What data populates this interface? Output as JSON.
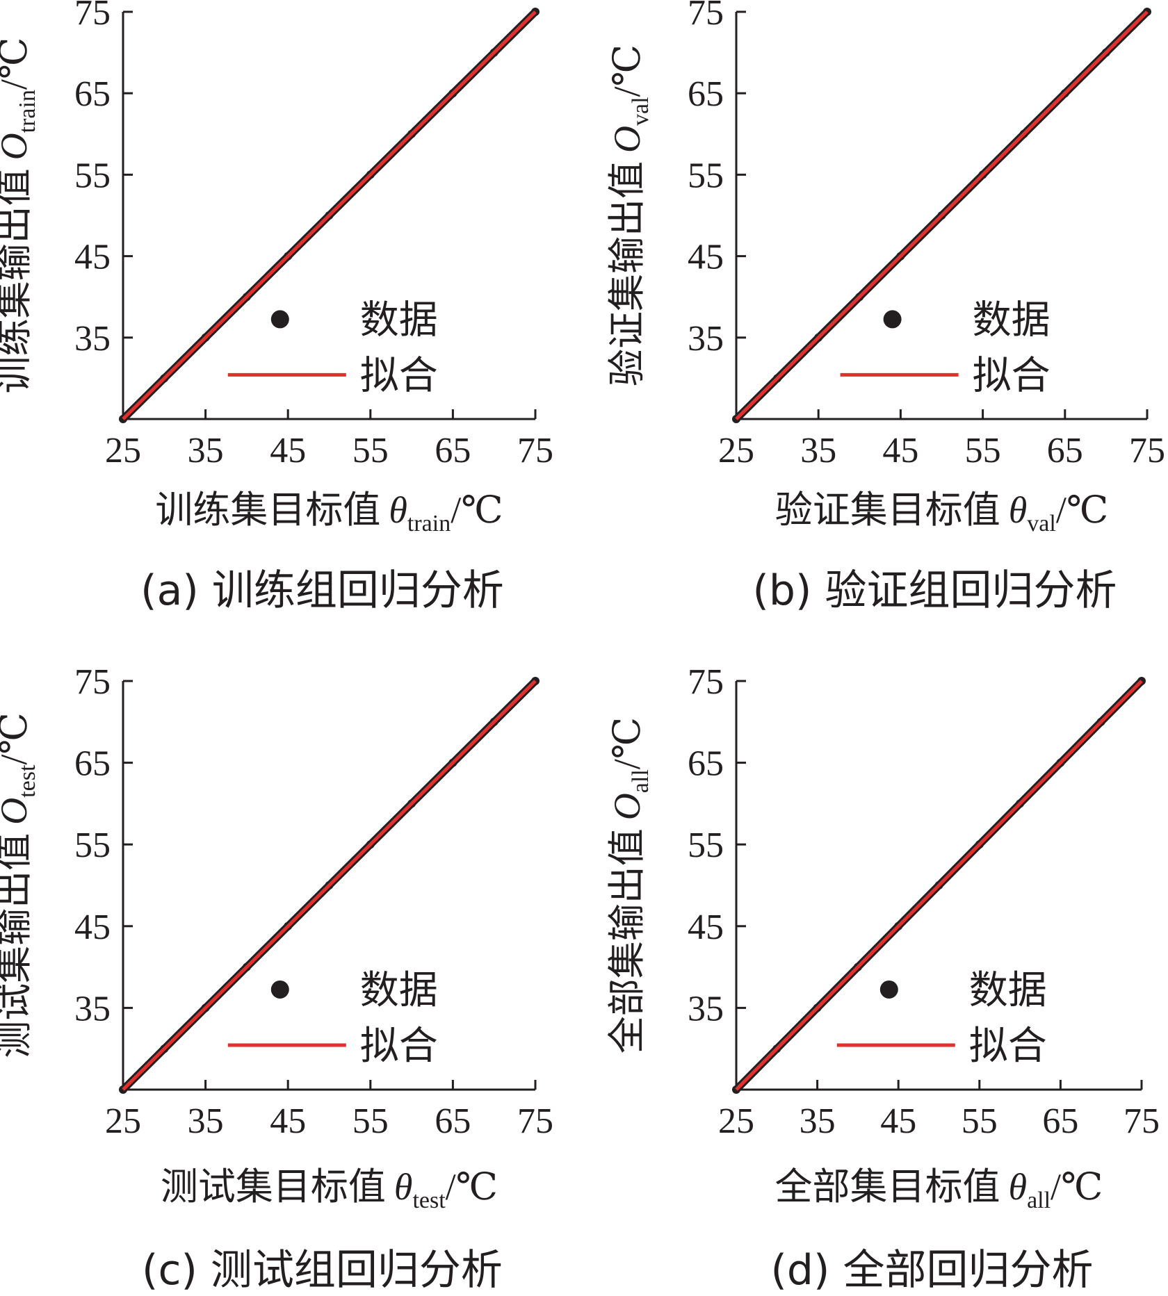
{
  "figure": {
    "colors": {
      "data": "#231f20",
      "fit": "#e0312f",
      "axis": "#231f20"
    }
  },
  "chart_data": [
    {
      "type": "scatter",
      "caption": "(a) 训练组回归分析",
      "xlabel": {
        "main": "训练集目标值",
        "symbol": "θ",
        "sub": "train",
        "unit": "/℃"
      },
      "ylabel": {
        "main": "训练集输出值",
        "symbol": "O",
        "sub": "train",
        "unit": "/℃"
      },
      "xlim": [
        25,
        75
      ],
      "ylim": [
        25,
        75
      ],
      "xticks": [
        25,
        35,
        45,
        55,
        65,
        75
      ],
      "yticks": [
        35,
        45,
        55,
        65,
        75
      ],
      "legend": {
        "position": "bottom-right",
        "entries": [
          "数据",
          "拟合"
        ]
      },
      "series": [
        {
          "name": "数据",
          "kind": "points",
          "x": [
            25,
            30,
            35,
            40,
            45,
            50,
            55,
            60,
            65,
            70,
            75
          ],
          "y": [
            25,
            30,
            35,
            40,
            45,
            50,
            55,
            60,
            65,
            70,
            75
          ]
        },
        {
          "name": "拟合",
          "kind": "line",
          "x": [
            25,
            75
          ],
          "y": [
            25,
            75
          ]
        }
      ]
    },
    {
      "type": "scatter",
      "caption": "(b) 验证组回归分析",
      "xlabel": {
        "main": "验证集目标值",
        "symbol": "θ",
        "sub": "val",
        "unit": "/℃"
      },
      "ylabel": {
        "main": "验证集输出值",
        "symbol": "O",
        "sub": "val",
        "unit": "/℃"
      },
      "xlim": [
        25,
        75
      ],
      "ylim": [
        25,
        75
      ],
      "xticks": [
        25,
        35,
        45,
        55,
        65,
        75
      ],
      "yticks": [
        35,
        45,
        55,
        65,
        75
      ],
      "legend": {
        "position": "bottom-right",
        "entries": [
          "数据",
          "拟合"
        ]
      },
      "series": [
        {
          "name": "数据",
          "kind": "points",
          "x": [
            25,
            30,
            35,
            40,
            45,
            50,
            55,
            60,
            65,
            70,
            75
          ],
          "y": [
            25,
            30,
            35,
            40,
            45,
            50,
            55,
            60,
            65,
            70,
            75
          ]
        },
        {
          "name": "拟合",
          "kind": "line",
          "x": [
            25,
            75
          ],
          "y": [
            25,
            75
          ]
        }
      ]
    },
    {
      "type": "scatter",
      "caption": "(c) 测试组回归分析",
      "xlabel": {
        "main": "测试集目标值",
        "symbol": "θ",
        "sub": "test",
        "unit": "/℃"
      },
      "ylabel": {
        "main": "测试集输出值",
        "symbol": "O",
        "sub": "test",
        "unit": "/℃"
      },
      "xlim": [
        25,
        75
      ],
      "ylim": [
        25,
        75
      ],
      "xticks": [
        25,
        35,
        45,
        55,
        65,
        75
      ],
      "yticks": [
        35,
        45,
        55,
        65,
        75
      ],
      "legend": {
        "position": "bottom-right",
        "entries": [
          "数据",
          "拟合"
        ]
      },
      "series": [
        {
          "name": "数据",
          "kind": "points",
          "x": [
            25,
            30,
            35,
            40,
            45,
            50,
            55,
            60,
            65,
            70,
            75
          ],
          "y": [
            25,
            30,
            35,
            40,
            45,
            50,
            55,
            60,
            65,
            70,
            75
          ]
        },
        {
          "name": "拟合",
          "kind": "line",
          "x": [
            25,
            75
          ],
          "y": [
            25,
            75
          ]
        }
      ]
    },
    {
      "type": "scatter",
      "caption": "(d) 全部回归分析",
      "xlabel": {
        "main": "全部集目标值",
        "symbol": "θ",
        "sub": "all",
        "unit": "/℃"
      },
      "ylabel": {
        "main": "全部集输出值",
        "symbol": "O",
        "sub": "all",
        "unit": "/℃"
      },
      "xlim": [
        25,
        75
      ],
      "ylim": [
        25,
        75
      ],
      "xticks": [
        25,
        35,
        45,
        55,
        65,
        75
      ],
      "yticks": [
        35,
        45,
        55,
        65,
        75
      ],
      "legend": {
        "position": "bottom-right",
        "entries": [
          "数据",
          "拟合"
        ]
      },
      "series": [
        {
          "name": "数据",
          "kind": "points",
          "x": [
            25,
            30,
            35,
            40,
            45,
            50,
            55,
            60,
            65,
            70,
            75
          ],
          "y": [
            25,
            30,
            35,
            40,
            45,
            50,
            55,
            60,
            65,
            70,
            75
          ]
        },
        {
          "name": "拟合",
          "kind": "line",
          "x": [
            25,
            75
          ],
          "y": [
            25,
            75
          ]
        }
      ]
    }
  ]
}
